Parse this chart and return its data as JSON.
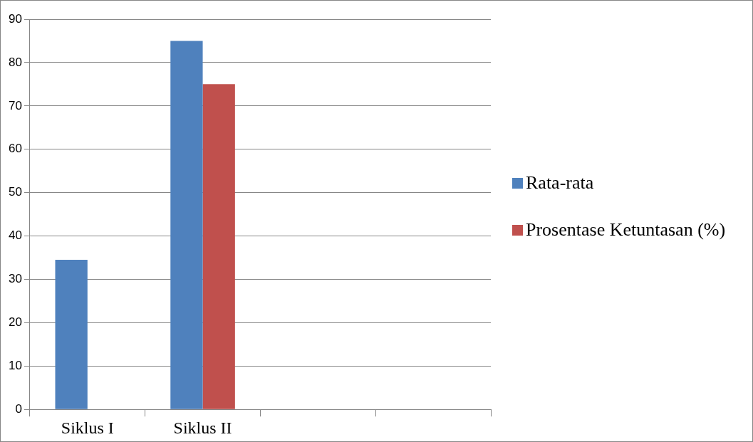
{
  "chart_data": {
    "type": "bar",
    "categories": [
      "Siklus I",
      "Siklus II",
      null,
      null
    ],
    "series": [
      {
        "name": "Rata-rata",
        "color": "#4f81bd",
        "values": [
          34.5,
          85,
          null,
          null
        ]
      },
      {
        "name": "Prosentase Ketuntasan (%)",
        "color": "#c0504d",
        "values": [
          null,
          75,
          null,
          null
        ]
      }
    ],
    "ylim": [
      0,
      90
    ],
    "yticks": [
      0,
      10,
      20,
      30,
      40,
      50,
      60,
      70,
      80,
      90
    ],
    "grid": "y",
    "legend": "right"
  }
}
